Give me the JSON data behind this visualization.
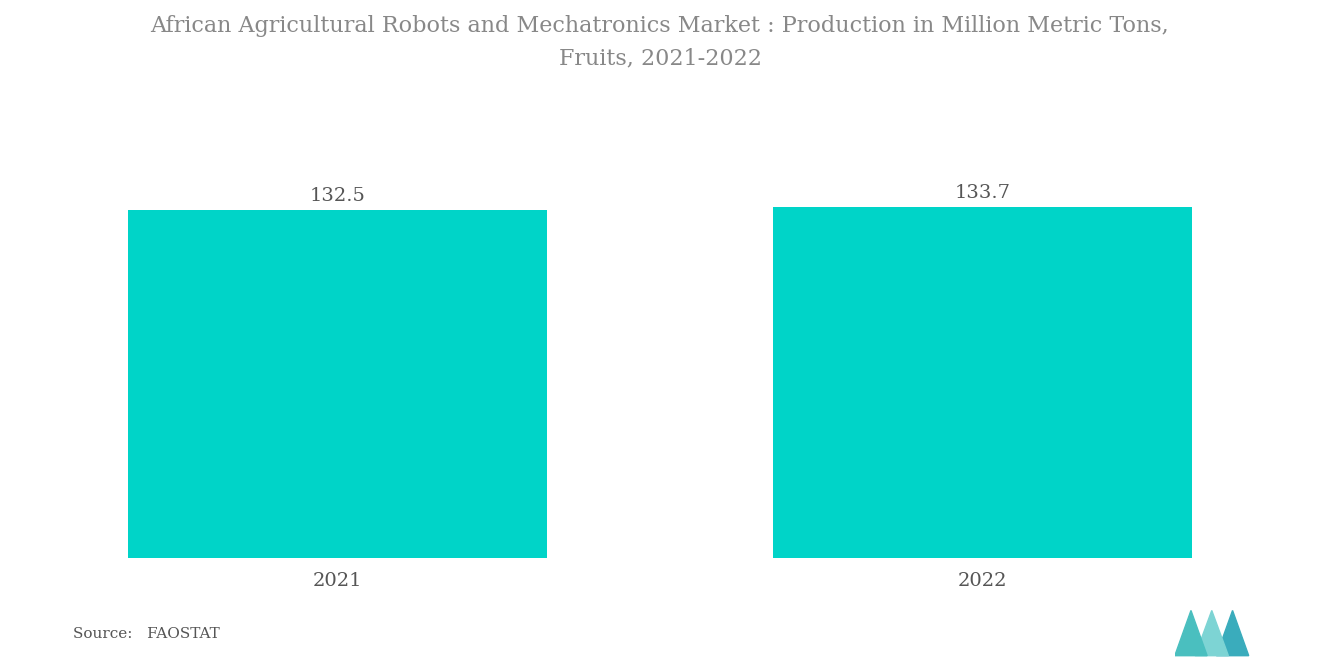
{
  "title": "African Agricultural Robots and Mechatronics Market : Production in Million Metric Tons,\nFruits, 2021-2022",
  "categories": [
    "2021",
    "2022"
  ],
  "values": [
    132.5,
    133.7
  ],
  "bar_color": "#00D4C8",
  "label_color": "#555555",
  "title_color": "#888888",
  "source_text": "Source:   FAOSTAT",
  "source_color": "#555555",
  "title_fontsize": 16,
  "label_fontsize": 14,
  "tick_fontsize": 14,
  "source_fontsize": 11,
  "ylim": [
    0,
    175
  ],
  "bar_width": 0.65,
  "xlim": [
    -0.5,
    1.5
  ],
  "background_color": "#ffffff",
  "logo_colors": [
    "#4ABFBF",
    "#7DD4D4",
    "#3AACBC"
  ]
}
